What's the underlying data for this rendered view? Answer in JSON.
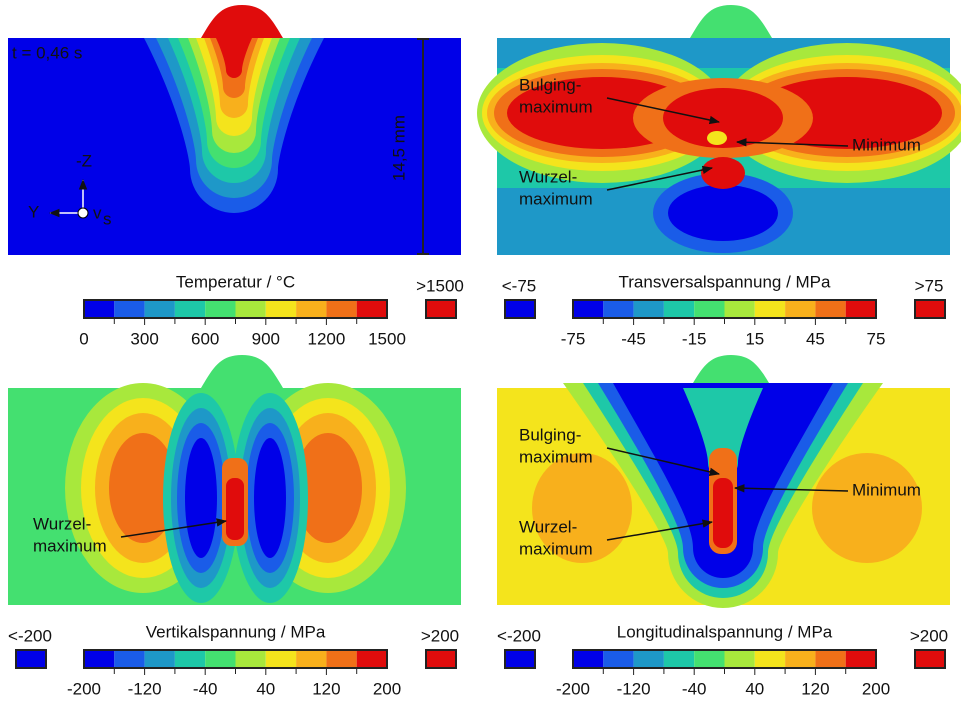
{
  "panels": [
    {
      "title": "Temperatur / °C",
      "ticks": [
        0,
        300,
        600,
        900,
        1200,
        1500
      ],
      "above": ">1500",
      "time": "t = 0,46 s",
      "depth": "14,5 mm",
      "axis_z": "-Z",
      "axis_y": "Y",
      "axis_v": "v",
      "axis_v_sub": "s"
    },
    {
      "title": "Transversalspannung / MPa",
      "ticks": [
        -75,
        -45,
        -15,
        15,
        45,
        75
      ],
      "below": "<-75",
      "above": ">75",
      "annotations": [
        {
          "lines": [
            "Bulging-",
            "maximum"
          ]
        },
        {
          "lines": [
            "Minimum"
          ]
        },
        {
          "lines": [
            "Wurzel-",
            "maximum"
          ]
        }
      ]
    },
    {
      "title": "Vertikalspannung / MPa",
      "ticks": [
        -200,
        -120,
        -40,
        40,
        120,
        200
      ],
      "below": "<-200",
      "above": ">200",
      "annotations": [
        {
          "lines": [
            "Wurzel-",
            "maximum"
          ]
        }
      ]
    },
    {
      "title": "Longitudinalspannung / MPa",
      "ticks": [
        -200,
        -120,
        -40,
        40,
        120,
        200
      ],
      "below": "<-200",
      "above": ">200",
      "annotations": [
        {
          "lines": [
            "Bulging-",
            "maximum"
          ]
        },
        {
          "lines": [
            "Minimum"
          ]
        },
        {
          "lines": [
            "Wurzel-",
            "maximum"
          ]
        }
      ]
    }
  ]
}
